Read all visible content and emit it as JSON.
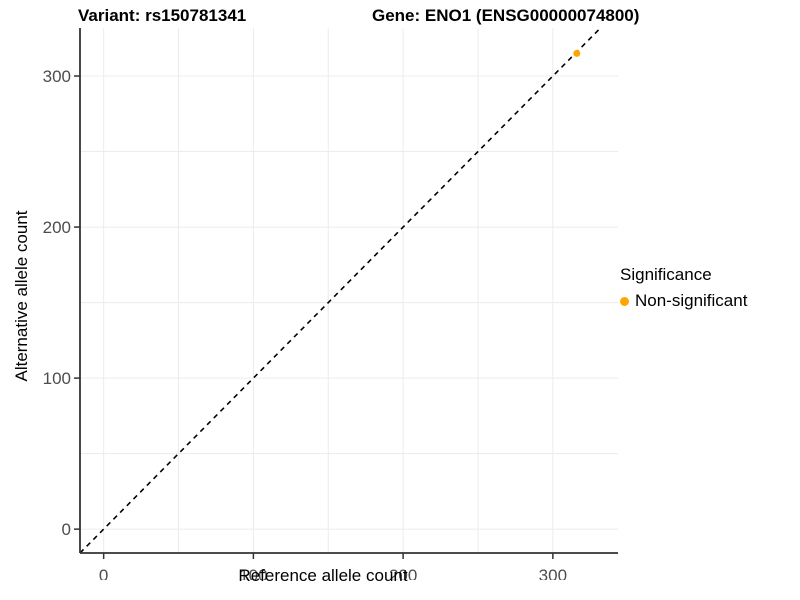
{
  "chart_data": {
    "type": "scatter",
    "title_left": "Variant: rs150781341",
    "title_right": "Gene: ENO1 (ENSG00000074800)",
    "xlabel": "Reference allele count",
    "ylabel": "Alternative allele count",
    "xlim": [
      -15.8,
      343.5
    ],
    "ylim": [
      -15.8,
      331.8
    ],
    "x_ticks": [
      0,
      100,
      200,
      300
    ],
    "y_ticks": [
      0,
      100,
      200,
      300
    ],
    "gridline_values": [
      0,
      50,
      100,
      150,
      200,
      250,
      300
    ],
    "grid": true,
    "points": [
      {
        "x": 316,
        "y": 315,
        "series": "Non-significant"
      }
    ],
    "abline": {
      "slope": 1,
      "intercept": 0,
      "linetype": "dashed",
      "color": "#000000"
    },
    "legend": {
      "title": "Significance",
      "position": "right",
      "items": [
        {
          "label": "Non-significant",
          "color": "#FFA500"
        }
      ]
    },
    "colors": {
      "point": "#FFA500",
      "grid": "#ececec",
      "axis": "#333333",
      "tick_text": "#4d4d4d"
    }
  }
}
